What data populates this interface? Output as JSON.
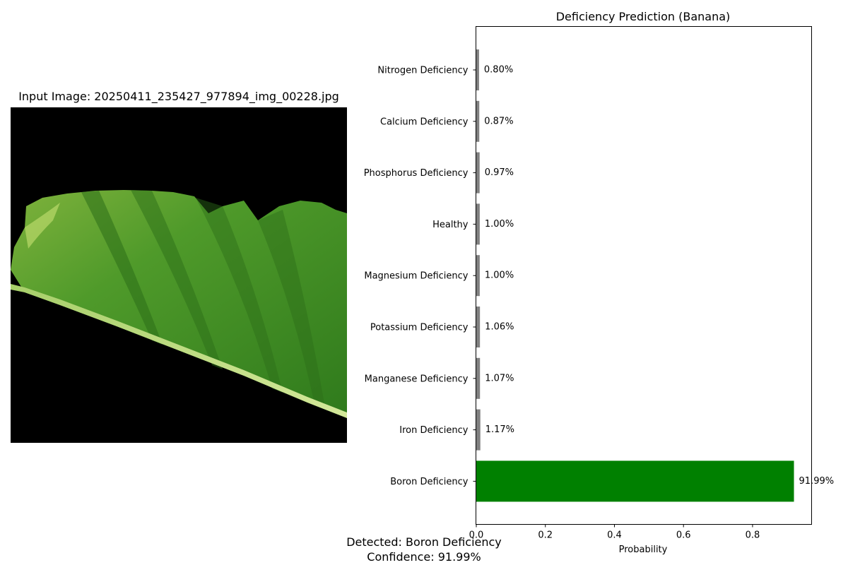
{
  "image_panel": {
    "title": "Input Image: 20250411_235427_977894_img_00228.jpg",
    "subject": "banana leaf on black background"
  },
  "chart_data": {
    "type": "bar",
    "orientation": "horizontal",
    "title": "Deficiency Prediction (Banana)",
    "xlabel": "Probability",
    "ylabel": "",
    "xlim": [
      0,
      0.97
    ],
    "xticks": [
      "0.0",
      "0.2",
      "0.4",
      "0.6",
      "0.8"
    ],
    "grid": false,
    "categories": [
      "Nitrogen Deficiency",
      "Calcium Deficiency",
      "Phosphorus Deficiency",
      "Healthy",
      "Magnesium Deficiency",
      "Potassium Deficiency",
      "Manganese Deficiency",
      "Iron Deficiency",
      "Boron Deficiency"
    ],
    "values": [
      0.008,
      0.0087,
      0.0097,
      0.01,
      0.01,
      0.0106,
      0.0107,
      0.0117,
      0.9199
    ],
    "value_labels": [
      "0.80%",
      "0.87%",
      "0.97%",
      "1.00%",
      "1.00%",
      "1.06%",
      "1.07%",
      "1.17%",
      "91.99%"
    ],
    "colors": [
      "#808080",
      "#808080",
      "#808080",
      "#808080",
      "#808080",
      "#808080",
      "#808080",
      "#808080",
      "#008000"
    ]
  },
  "result": {
    "detected": "Detected: Boron Deficiency",
    "confidence": "Confidence: 91.99%"
  }
}
